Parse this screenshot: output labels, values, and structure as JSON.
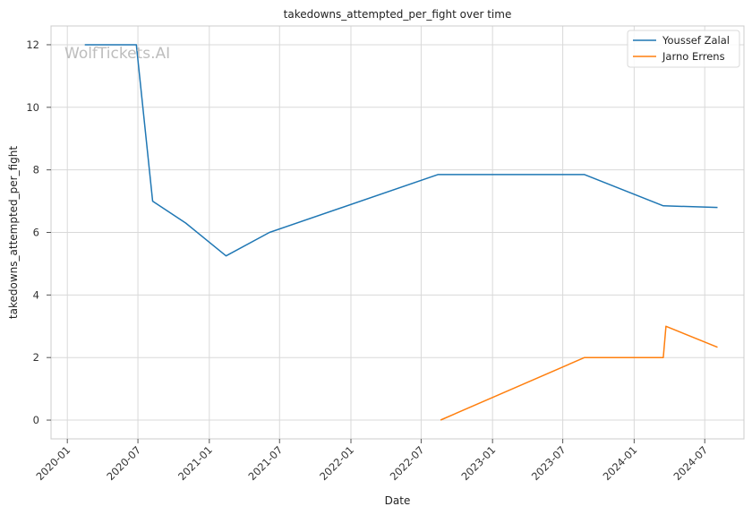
{
  "watermark": "WolfTickets.AI",
  "chart_data": {
    "type": "line",
    "title": "takedowns_attempted_per_fight over time",
    "xlabel": "Date",
    "ylabel": "takedowns_attempted_per_fight",
    "xlim": [
      "2019-11-20",
      "2024-10-10"
    ],
    "ylim": [
      -0.6,
      12.6
    ],
    "x_ticks": [
      "2020-01",
      "2020-07",
      "2021-01",
      "2021-07",
      "2022-01",
      "2022-07",
      "2023-01",
      "2023-07",
      "2024-01",
      "2024-07"
    ],
    "y_ticks": [
      0,
      2,
      4,
      6,
      8,
      10,
      12
    ],
    "grid": true,
    "legend_position": "top-right",
    "series": [
      {
        "name": "Youssef Zalal",
        "color": "#1f77b4",
        "points": [
          {
            "x": "2020-02-15",
            "y": 12
          },
          {
            "x": "2020-06-27",
            "y": 12
          },
          {
            "x": "2020-08-08",
            "y": 7
          },
          {
            "x": "2020-11-01",
            "y": 6.3
          },
          {
            "x": "2021-02-13",
            "y": 5.25
          },
          {
            "x": "2021-06-05",
            "y": 6.0
          },
          {
            "x": "2022-08-13",
            "y": 7.85
          },
          {
            "x": "2023-08-26",
            "y": 7.85
          },
          {
            "x": "2024-03-16",
            "y": 6.85
          },
          {
            "x": "2024-08-03",
            "y": 6.8
          }
        ]
      },
      {
        "name": "Jarno Errens",
        "color": "#ff7f0e",
        "points": [
          {
            "x": "2022-08-20",
            "y": 0
          },
          {
            "x": "2023-08-26",
            "y": 2
          },
          {
            "x": "2024-03-16",
            "y": 2
          },
          {
            "x": "2024-03-23",
            "y": 3
          },
          {
            "x": "2024-08-03",
            "y": 2.33
          }
        ]
      }
    ]
  }
}
